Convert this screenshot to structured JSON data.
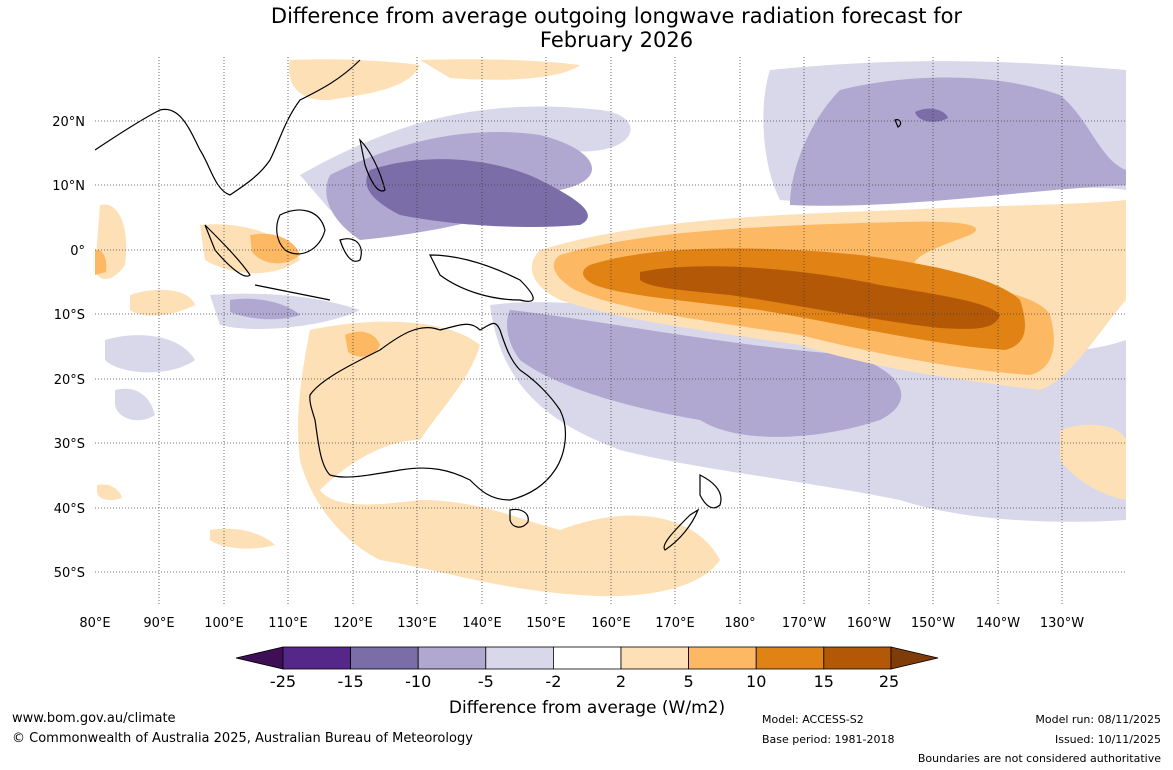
{
  "title_line1": "Difference from average outgoing longwave radiation forecast for",
  "title_line2": "February 2026",
  "lat_labels": [
    "20°N",
    "10°N",
    "0°",
    "10°S",
    "20°S",
    "30°S",
    "40°S",
    "50°S"
  ],
  "lon_labels": [
    "80°E",
    "90°E",
    "100°E",
    "110°E",
    "120°E",
    "130°E",
    "140°E",
    "150°E",
    "160°E",
    "170°E",
    "180°",
    "170°W",
    "160°W",
    "150°W",
    "140°W",
    "130°W"
  ],
  "colorbar": {
    "ticks": [
      "-25",
      "-15",
      "-10",
      "-5",
      "-2",
      "2",
      "5",
      "10",
      "15",
      "25"
    ],
    "colors": [
      "#3f0f55",
      "#542788",
      "#7b6da8",
      "#b0a8d0",
      "#d8d8ea",
      "#ffffff",
      "#fee0b6",
      "#fdb863",
      "#e08214",
      "#b35806",
      "#7f3b08"
    ],
    "label": "Difference from average (W/m2)"
  },
  "footer": {
    "url": "www.bom.gov.au/climate",
    "copyright": "© Commonwealth of Australia 2025, Australian Bureau of Meteorology",
    "model": "Model: ACCESS-S2",
    "base_period": "Base period: 1981-2018",
    "model_run": "Model run: 08/11/2025",
    "issued": "Issued: 10/11/2025",
    "disclaimer": "Boundaries are not considered authoritative"
  }
}
